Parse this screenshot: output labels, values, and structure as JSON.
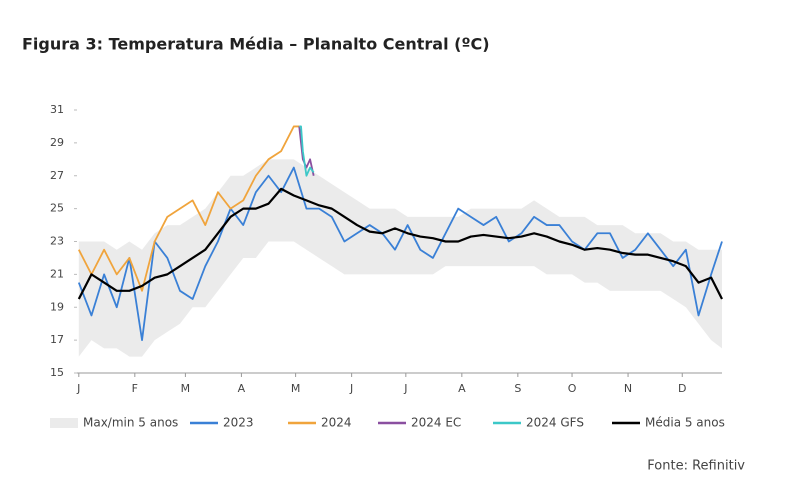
{
  "chart_data": {
    "type": "line",
    "title": "Figura 3: Temperatura Média – Planalto Central (ºC)",
    "source": "Fonte: Refinitiv",
    "x": [
      1,
      8,
      15,
      22,
      29,
      36,
      43,
      50,
      57,
      64,
      71,
      78,
      85,
      92,
      99,
      106,
      113,
      120,
      127,
      134,
      141,
      148,
      155,
      162,
      169,
      176,
      183,
      190,
      197,
      204,
      211,
      218,
      225,
      232,
      239,
      246,
      253,
      260,
      267,
      274,
      281,
      288,
      295,
      302,
      309,
      316,
      323,
      330,
      337,
      344,
      351,
      357
    ],
    "xlim": [
      0,
      357
    ],
    "xticks": [
      {
        "value": 1,
        "label": "J"
      },
      {
        "value": 32,
        "label": "F"
      },
      {
        "value": 60,
        "label": "M"
      },
      {
        "value": 91,
        "label": "A"
      },
      {
        "value": 121,
        "label": "M"
      },
      {
        "value": 152,
        "label": "J"
      },
      {
        "value": 182,
        "label": "J"
      },
      {
        "value": 213,
        "label": "A"
      },
      {
        "value": 244,
        "label": "S"
      },
      {
        "value": 274,
        "label": "O"
      },
      {
        "value": 305,
        "label": "N"
      },
      {
        "value": 335,
        "label": "D"
      }
    ],
    "ylim": [
      15,
      31
    ],
    "yticks": [
      15,
      17,
      19,
      21,
      23,
      25,
      27,
      29,
      31
    ],
    "series": [
      {
        "name": "Max/min 5 anos",
        "color": "#ebebeb",
        "values": [
          23,
          23,
          23,
          22.5,
          23,
          22.5,
          23.5,
          24,
          24,
          24.5,
          25,
          26,
          27,
          27,
          27.5,
          28,
          28,
          28,
          27.5,
          27,
          26.5,
          26,
          25.5,
          25,
          25,
          25,
          24.5,
          24.5,
          24.5,
          24.5,
          24.5,
          25,
          25,
          25,
          25,
          25,
          25.5,
          25,
          24.5,
          24.5,
          24.5,
          24,
          24,
          24,
          23.5,
          23.5,
          23.5,
          23,
          23,
          22.5,
          22.5,
          22.5
        ],
        "low": [
          16,
          17,
          16.5,
          16.5,
          16,
          16,
          17,
          17.5,
          18,
          19,
          19,
          20,
          21,
          22,
          22,
          23,
          23,
          23,
          22.5,
          22,
          21.5,
          21,
          21,
          21,
          21,
          21,
          21,
          21,
          21,
          21.5,
          21.5,
          21.5,
          21.5,
          21.5,
          21.5,
          21.5,
          21.5,
          21,
          21,
          21,
          20.5,
          20.5,
          20,
          20,
          20,
          20,
          20,
          19.5,
          19,
          18,
          17,
          16.5
        ]
      },
      {
        "name": "2023",
        "color": "#3a80d6",
        "values": [
          20.5,
          18.5,
          21,
          19,
          22,
          17,
          23,
          22,
          20,
          19.5,
          21.5,
          23,
          25,
          24,
          26,
          27,
          26,
          27.5,
          25,
          25,
          24.5,
          23,
          23.5,
          24,
          23.5,
          22.5,
          24,
          22.5,
          22,
          23.5,
          25,
          24.5,
          24,
          24.5,
          23,
          23.5,
          24.5,
          24,
          24,
          23,
          22.5,
          23.5,
          23.5,
          22,
          22.5,
          23.5,
          22.5,
          21.5,
          22.5,
          18.5,
          21,
          23
        ]
      },
      {
        "name": "2024",
        "color": "#f0a43c",
        "x": [
          1,
          8,
          15,
          22,
          29,
          36,
          43,
          50,
          57,
          64,
          71,
          78,
          85,
          92,
          99,
          106,
          113,
          120,
          123
        ],
        "values": [
          22.5,
          21,
          22.5,
          21,
          22,
          20,
          23,
          24.5,
          25,
          25.5,
          24,
          26,
          25,
          25.5,
          27,
          28,
          28.5,
          30,
          30
        ]
      },
      {
        "name": "2024 EC",
        "color": "#8a4fa0",
        "x": [
          123,
          125,
          127,
          129,
          131
        ],
        "values": [
          30,
          28,
          27.5,
          28,
          27
        ]
      },
      {
        "name": "2024 GFS",
        "color": "#3cc8c8",
        "x": [
          123,
          124,
          125,
          127,
          129,
          131
        ],
        "values": [
          30,
          30,
          28.5,
          27,
          27.5,
          27.2
        ]
      },
      {
        "name": "Média 5 anos",
        "color": "#000000",
        "values": [
          19.5,
          21,
          20.5,
          20,
          20,
          20.3,
          20.8,
          21,
          21.5,
          22,
          22.5,
          23.5,
          24.5,
          25,
          25,
          25.3,
          26.2,
          25.8,
          25.5,
          25.2,
          25,
          24.5,
          24,
          23.6,
          23.5,
          23.8,
          23.5,
          23.3,
          23.2,
          23,
          23,
          23.3,
          23.4,
          23.3,
          23.2,
          23.3,
          23.5,
          23.3,
          23,
          22.8,
          22.5,
          22.6,
          22.5,
          22.3,
          22.2,
          22.2,
          22,
          21.8,
          21.5,
          20.5,
          20.8,
          19.5
        ]
      }
    ]
  }
}
